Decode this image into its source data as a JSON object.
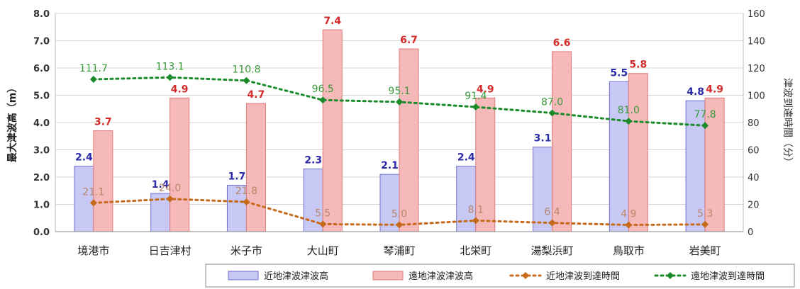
{
  "chart_data": {
    "type": "bar",
    "categories": [
      "境港市",
      "日吉津村",
      "米子市",
      "大山町",
      "琴浦町",
      "北栄町",
      "湯梨浜町",
      "鳥取市",
      "岩美町"
    ],
    "ylabel": "最大津波高（m）",
    "ylabel2": "津波到達時間（分）",
    "ylim": [
      0,
      8
    ],
    "ylim2": [
      0,
      160
    ],
    "y_ticks": [
      "0.0",
      "1.0",
      "2.0",
      "3.0",
      "4.0",
      "5.0",
      "6.0",
      "7.0",
      "8.0"
    ],
    "y2_ticks": [
      "0",
      "20",
      "40",
      "60",
      "80",
      "100",
      "120",
      "140",
      "160"
    ],
    "grid": true,
    "legend_position": "bottom-right",
    "series": [
      {
        "name": "近地津波津波高",
        "kind": "bar",
        "axis": "left",
        "color": "#c8c8f4",
        "stroke": "#7070d0",
        "label_color": "#2a2aa8",
        "values": [
          2.4,
          1.4,
          1.7,
          2.3,
          2.1,
          2.4,
          3.1,
          5.5,
          4.8
        ],
        "labels": [
          "2.4",
          "1.4",
          "1.7",
          "2.3",
          "2.1",
          "2.4",
          "3.1",
          "5.5",
          "4.8"
        ]
      },
      {
        "name": "遠地津波津波高",
        "kind": "bar",
        "axis": "left",
        "color": "#f6b9b9",
        "stroke": "#e07a7a",
        "label_color": "#d42a2a",
        "values": [
          3.7,
          4.9,
          4.7,
          7.4,
          6.7,
          4.9,
          6.6,
          5.8,
          4.9
        ],
        "labels": [
          "3.7",
          "4.9",
          "4.7",
          "7.4",
          "6.7",
          "4.9",
          "6.6",
          "5.8",
          "4.9"
        ]
      },
      {
        "name": "近地津波到達時間",
        "kind": "line",
        "axis": "right",
        "color": "#c46a1a",
        "label_color": "#b8866a",
        "values": [
          21.1,
          24.0,
          21.8,
          5.5,
          5.0,
          8.1,
          6.4,
          4.9,
          5.3
        ],
        "labels": [
          "21.1",
          "24.0",
          "21.8",
          "5.5",
          "5.0",
          "8.1",
          "6.4",
          "4.9",
          "5.3"
        ]
      },
      {
        "name": "遠地津波到達時間",
        "kind": "line",
        "axis": "right",
        "color": "#1a8a2a",
        "label_color": "#3a9a3a",
        "values": [
          111.7,
          113.1,
          110.8,
          96.5,
          95.1,
          91.4,
          87.0,
          81.0,
          77.8
        ],
        "labels": [
          "111.7",
          "113.1",
          "110.8",
          "96.5",
          "95.1",
          "91.4",
          "87.0",
          "81.0",
          "77.8"
        ]
      }
    ]
  }
}
